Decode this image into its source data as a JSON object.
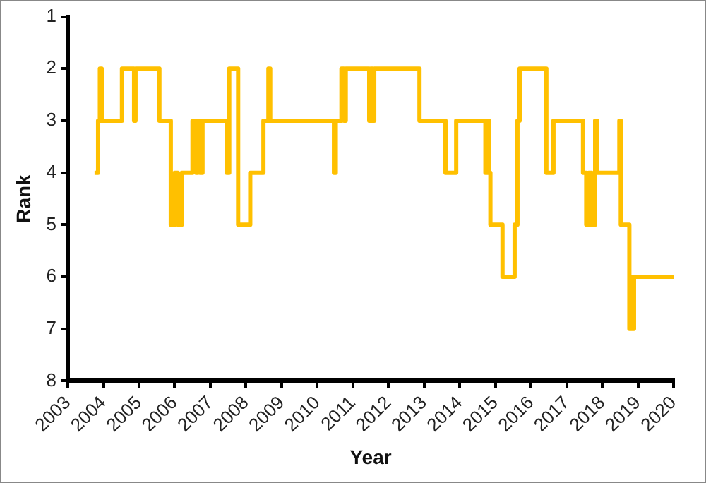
{
  "chart_data": {
    "type": "step",
    "xlabel": "Year",
    "ylabel": "Rank",
    "color": "#ffc000",
    "x": [
      2003.75,
      2003.85,
      2003.9,
      2003.95,
      2004.52,
      2004.86,
      2004.9,
      2005.57,
      2005.89,
      2006.0,
      2006.09,
      2006.2,
      2006.5,
      2006.6,
      2006.65,
      2006.71,
      2006.78,
      2007.46,
      2007.53,
      2007.78,
      2008.12,
      2008.49,
      2008.63,
      2008.68,
      2010.47,
      2010.52,
      2010.68,
      2010.75,
      2010.8,
      2011.46,
      2011.5,
      2011.55,
      2011.6,
      2012.87,
      2013.6,
      2013.9,
      2014.72,
      2014.77,
      2014.82,
      2014.86,
      2015.2,
      2015.54,
      2015.62,
      2015.68,
      2016.43,
      2016.63,
      2017.46,
      2017.55,
      2017.62,
      2017.7,
      2017.8,
      2017.85,
      2018.48,
      2018.52,
      2018.76,
      2018.8,
      2018.85,
      2018.89,
      2020
    ],
    "values": [
      4,
      3,
      2,
      3,
      2,
      3,
      2,
      3,
      5,
      4,
      5,
      4,
      3,
      4,
      3,
      4,
      3,
      4,
      2,
      5,
      4,
      3,
      2,
      3,
      4,
      3,
      2,
      3,
      2,
      3,
      2,
      3,
      2,
      3,
      4,
      3,
      4,
      3,
      4,
      5,
      6,
      5,
      3,
      2,
      4,
      3,
      4,
      5,
      4,
      5,
      3,
      4,
      3,
      5,
      7,
      6,
      7,
      6,
      6
    ],
    "xlim": [
      2003,
      2020
    ],
    "xticks": [
      2003,
      2004,
      2005,
      2006,
      2007,
      2008,
      2009,
      2010,
      2011,
      2012,
      2013,
      2014,
      2015,
      2016,
      2017,
      2018,
      2019,
      2020
    ],
    "ylim": [
      8,
      1
    ],
    "yticks": [
      1,
      2,
      3,
      4,
      5,
      6,
      7,
      8
    ],
    "grid": false
  }
}
